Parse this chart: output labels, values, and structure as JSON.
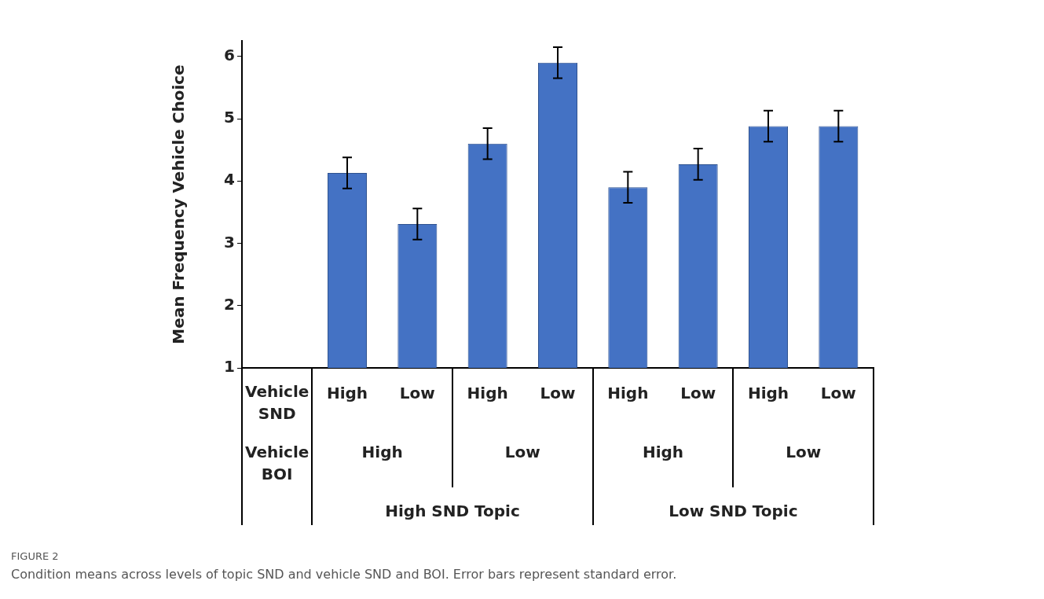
{
  "chart_data": {
    "type": "bar",
    "title": "FIGURE 2",
    "subtitle": "Condition means across levels of topic SND and vehicle SND and BOI. Error bars represent standard error.",
    "ylabel": "Mean Frequency Vehicle Choice",
    "categories": [
      null,
      "High",
      "Low",
      "High",
      "Low",
      "High",
      "Low",
      "High",
      "Low"
    ],
    "values": [
      null,
      4.13,
      3.31,
      4.6,
      5.9,
      3.9,
      4.27,
      4.88,
      4.88
    ],
    "errors": [
      null,
      0.25,
      0.25,
      0.25,
      0.25,
      0.25,
      0.25,
      0.25,
      0.25
    ],
    "color": "#4472c4",
    "ylim": [
      1,
      6.25
    ],
    "yticks": [
      1,
      2,
      3,
      4,
      5,
      6
    ],
    "grid": false,
    "legend": false,
    "annotations": [
      "Vehicle SND",
      "Vehicle BOI",
      "High",
      "Low",
      "High",
      "Low",
      "High SND Topic",
      "Low SND Topic"
    ]
  }
}
